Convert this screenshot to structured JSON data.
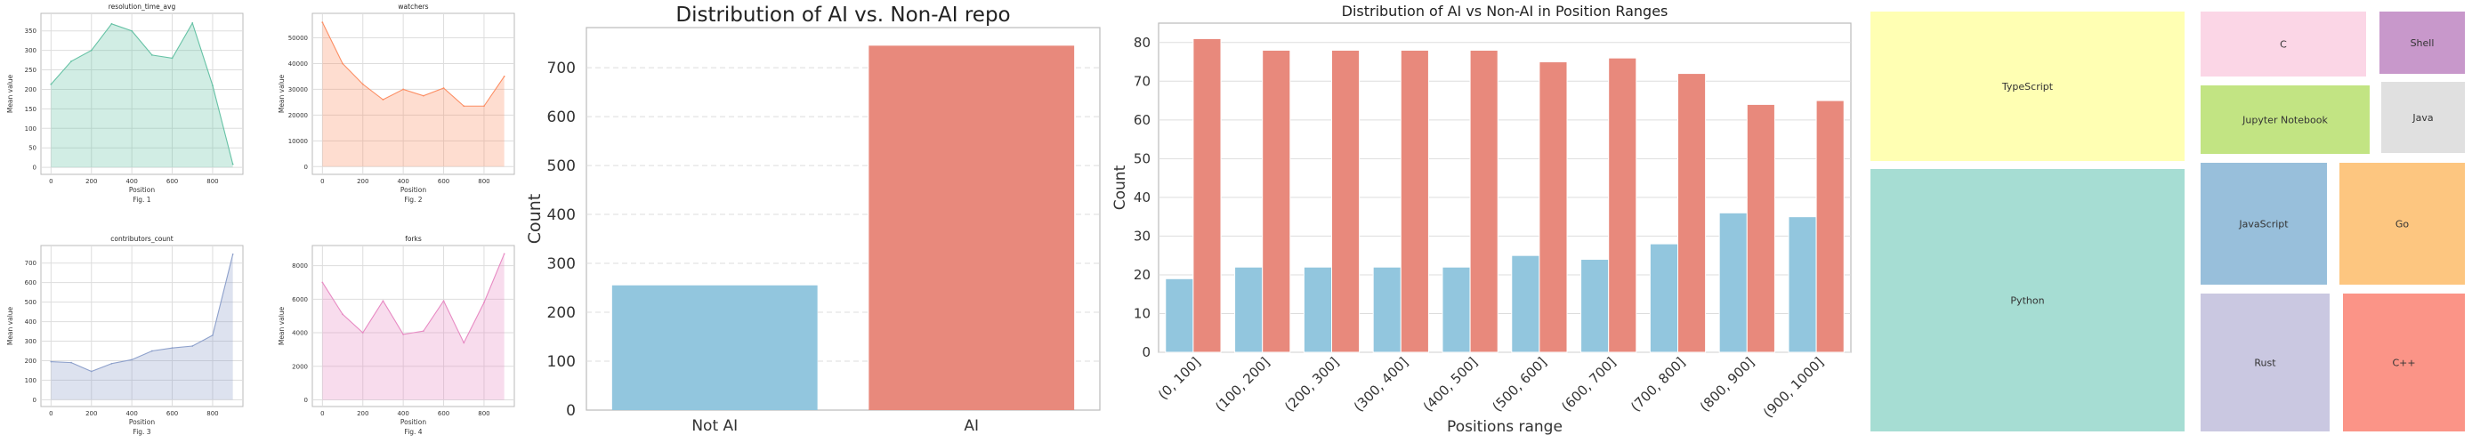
{
  "colors": {
    "area1": "#66c2a5",
    "area2": "#fc8d62",
    "area3": "#8da0cb",
    "area4": "#e78ac3",
    "non_ai": "#92c6de",
    "ai": "#e8897c",
    "grid": "#dddddd",
    "axis": "#bbbbbb",
    "text": "#333333"
  },
  "chart_data": [
    {
      "id": "fig1",
      "type": "area",
      "title": "resolution_time_avg",
      "xlabel": "Position",
      "ylabel": "Mean value",
      "caption": "Fig. 1",
      "x": [
        0,
        100,
        200,
        300,
        400,
        500,
        600,
        700,
        800,
        900
      ],
      "values": [
        213,
        272,
        300,
        368,
        350,
        288,
        280,
        370,
        210,
        8
      ],
      "xlim": [
        -50,
        950
      ],
      "ylim": [
        -18,
        395
      ],
      "xticks": [
        0,
        200,
        400,
        600,
        800
      ],
      "yticks": [
        0,
        50,
        100,
        150,
        200,
        250,
        300,
        350
      ],
      "color": "#66c2a5"
    },
    {
      "id": "fig2",
      "type": "area",
      "title": "watchers",
      "xlabel": "Position",
      "ylabel": "Mean value",
      "caption": "Fig. 2",
      "x": [
        0,
        100,
        200,
        300,
        400,
        500,
        600,
        700,
        800,
        900
      ],
      "values": [
        56000,
        40000,
        32000,
        26000,
        30000,
        27500,
        30500,
        23500,
        23500,
        35000
      ],
      "xlim": [
        -50,
        950
      ],
      "ylim": [
        -3000,
        59500
      ],
      "xticks": [
        0,
        200,
        400,
        600,
        800
      ],
      "yticks": [
        0,
        10000,
        20000,
        30000,
        40000,
        50000
      ],
      "color": "#fc8d62"
    },
    {
      "id": "fig3",
      "type": "area",
      "title": "contributors_count",
      "xlabel": "Position",
      "ylabel": "Mean value",
      "caption": "Fig. 3",
      "x": [
        0,
        100,
        200,
        300,
        400,
        500,
        600,
        700,
        800,
        900
      ],
      "values": [
        195,
        190,
        145,
        185,
        205,
        250,
        265,
        275,
        330,
        745
      ],
      "xlim": [
        -50,
        950
      ],
      "ylim": [
        -35,
        790
      ],
      "xticks": [
        0,
        200,
        400,
        600,
        800
      ],
      "yticks": [
        0,
        100,
        200,
        300,
        400,
        500,
        600,
        700
      ],
      "color": "#8da0cb"
    },
    {
      "id": "fig4",
      "type": "area",
      "title": "forks",
      "xlabel": "Position",
      "ylabel": "Mean value",
      "caption": "Fig. 4",
      "x": [
        0,
        100,
        200,
        300,
        400,
        500,
        600,
        700,
        800,
        900
      ],
      "values": [
        7000,
        5100,
        4000,
        5900,
        3900,
        4100,
        5900,
        3400,
        5800,
        8700
      ],
      "xlim": [
        -50,
        950
      ],
      "ylim": [
        -400,
        9200
      ],
      "xticks": [
        0,
        200,
        400,
        600,
        800
      ],
      "yticks": [
        0,
        2000,
        4000,
        6000,
        8000
      ],
      "color": "#e78ac3"
    },
    {
      "id": "bar_ai",
      "type": "bar",
      "title": "Distribution of AI vs. Non-AI repo",
      "xlabel": "",
      "ylabel": "Count",
      "categories": [
        "Not AI",
        "AI"
      ],
      "values": [
        255,
        745
      ],
      "colors": [
        "#92c6de",
        "#e8897c"
      ],
      "ylim": [
        0,
        782
      ],
      "yticks": [
        0,
        100,
        200,
        300,
        400,
        500,
        600,
        700
      ]
    },
    {
      "id": "grouped",
      "type": "bar",
      "title": "Distribution of AI vs Non-AI in Position Ranges",
      "xlabel": "Positions range",
      "ylabel": "Count",
      "categories": [
        "(0, 100]",
        "(100, 200]",
        "(200, 300]",
        "(300, 400]",
        "(400, 500]",
        "(500, 600]",
        "(600, 700]",
        "(700, 800]",
        "(800, 900]",
        "(900, 1000]"
      ],
      "series": [
        {
          "values": [
            19,
            22,
            22,
            22,
            22,
            25,
            24,
            28,
            36,
            35
          ],
          "color": "#92c6de"
        },
        {
          "values": [
            81,
            78,
            78,
            78,
            78,
            75,
            76,
            72,
            64,
            65
          ],
          "color": "#e8897c"
        }
      ],
      "ylim": [
        0,
        85
      ],
      "yticks": [
        0,
        10,
        20,
        30,
        40,
        50,
        60,
        70,
        80
      ]
    },
    {
      "id": "treemap",
      "type": "treemap",
      "items": [
        {
          "label": "TypeScript",
          "color": "#ffffb3"
        },
        {
          "label": "Python",
          "color": "#a6ddd3"
        },
        {
          "label": "C",
          "color": "#fbd6e6"
        },
        {
          "label": "Shell",
          "color": "#c898cb"
        },
        {
          "label": "Jupyter Notebook",
          "color": "#c2e483"
        },
        {
          "label": "Java",
          "color": "#e0e0e0"
        },
        {
          "label": "JavaScript",
          "color": "#98bfdb"
        },
        {
          "label": "Go",
          "color": "#fdc680"
        },
        {
          "label": "Rust",
          "color": "#cac8e1"
        },
        {
          "label": "C++",
          "color": "#fb9487"
        }
      ]
    }
  ]
}
